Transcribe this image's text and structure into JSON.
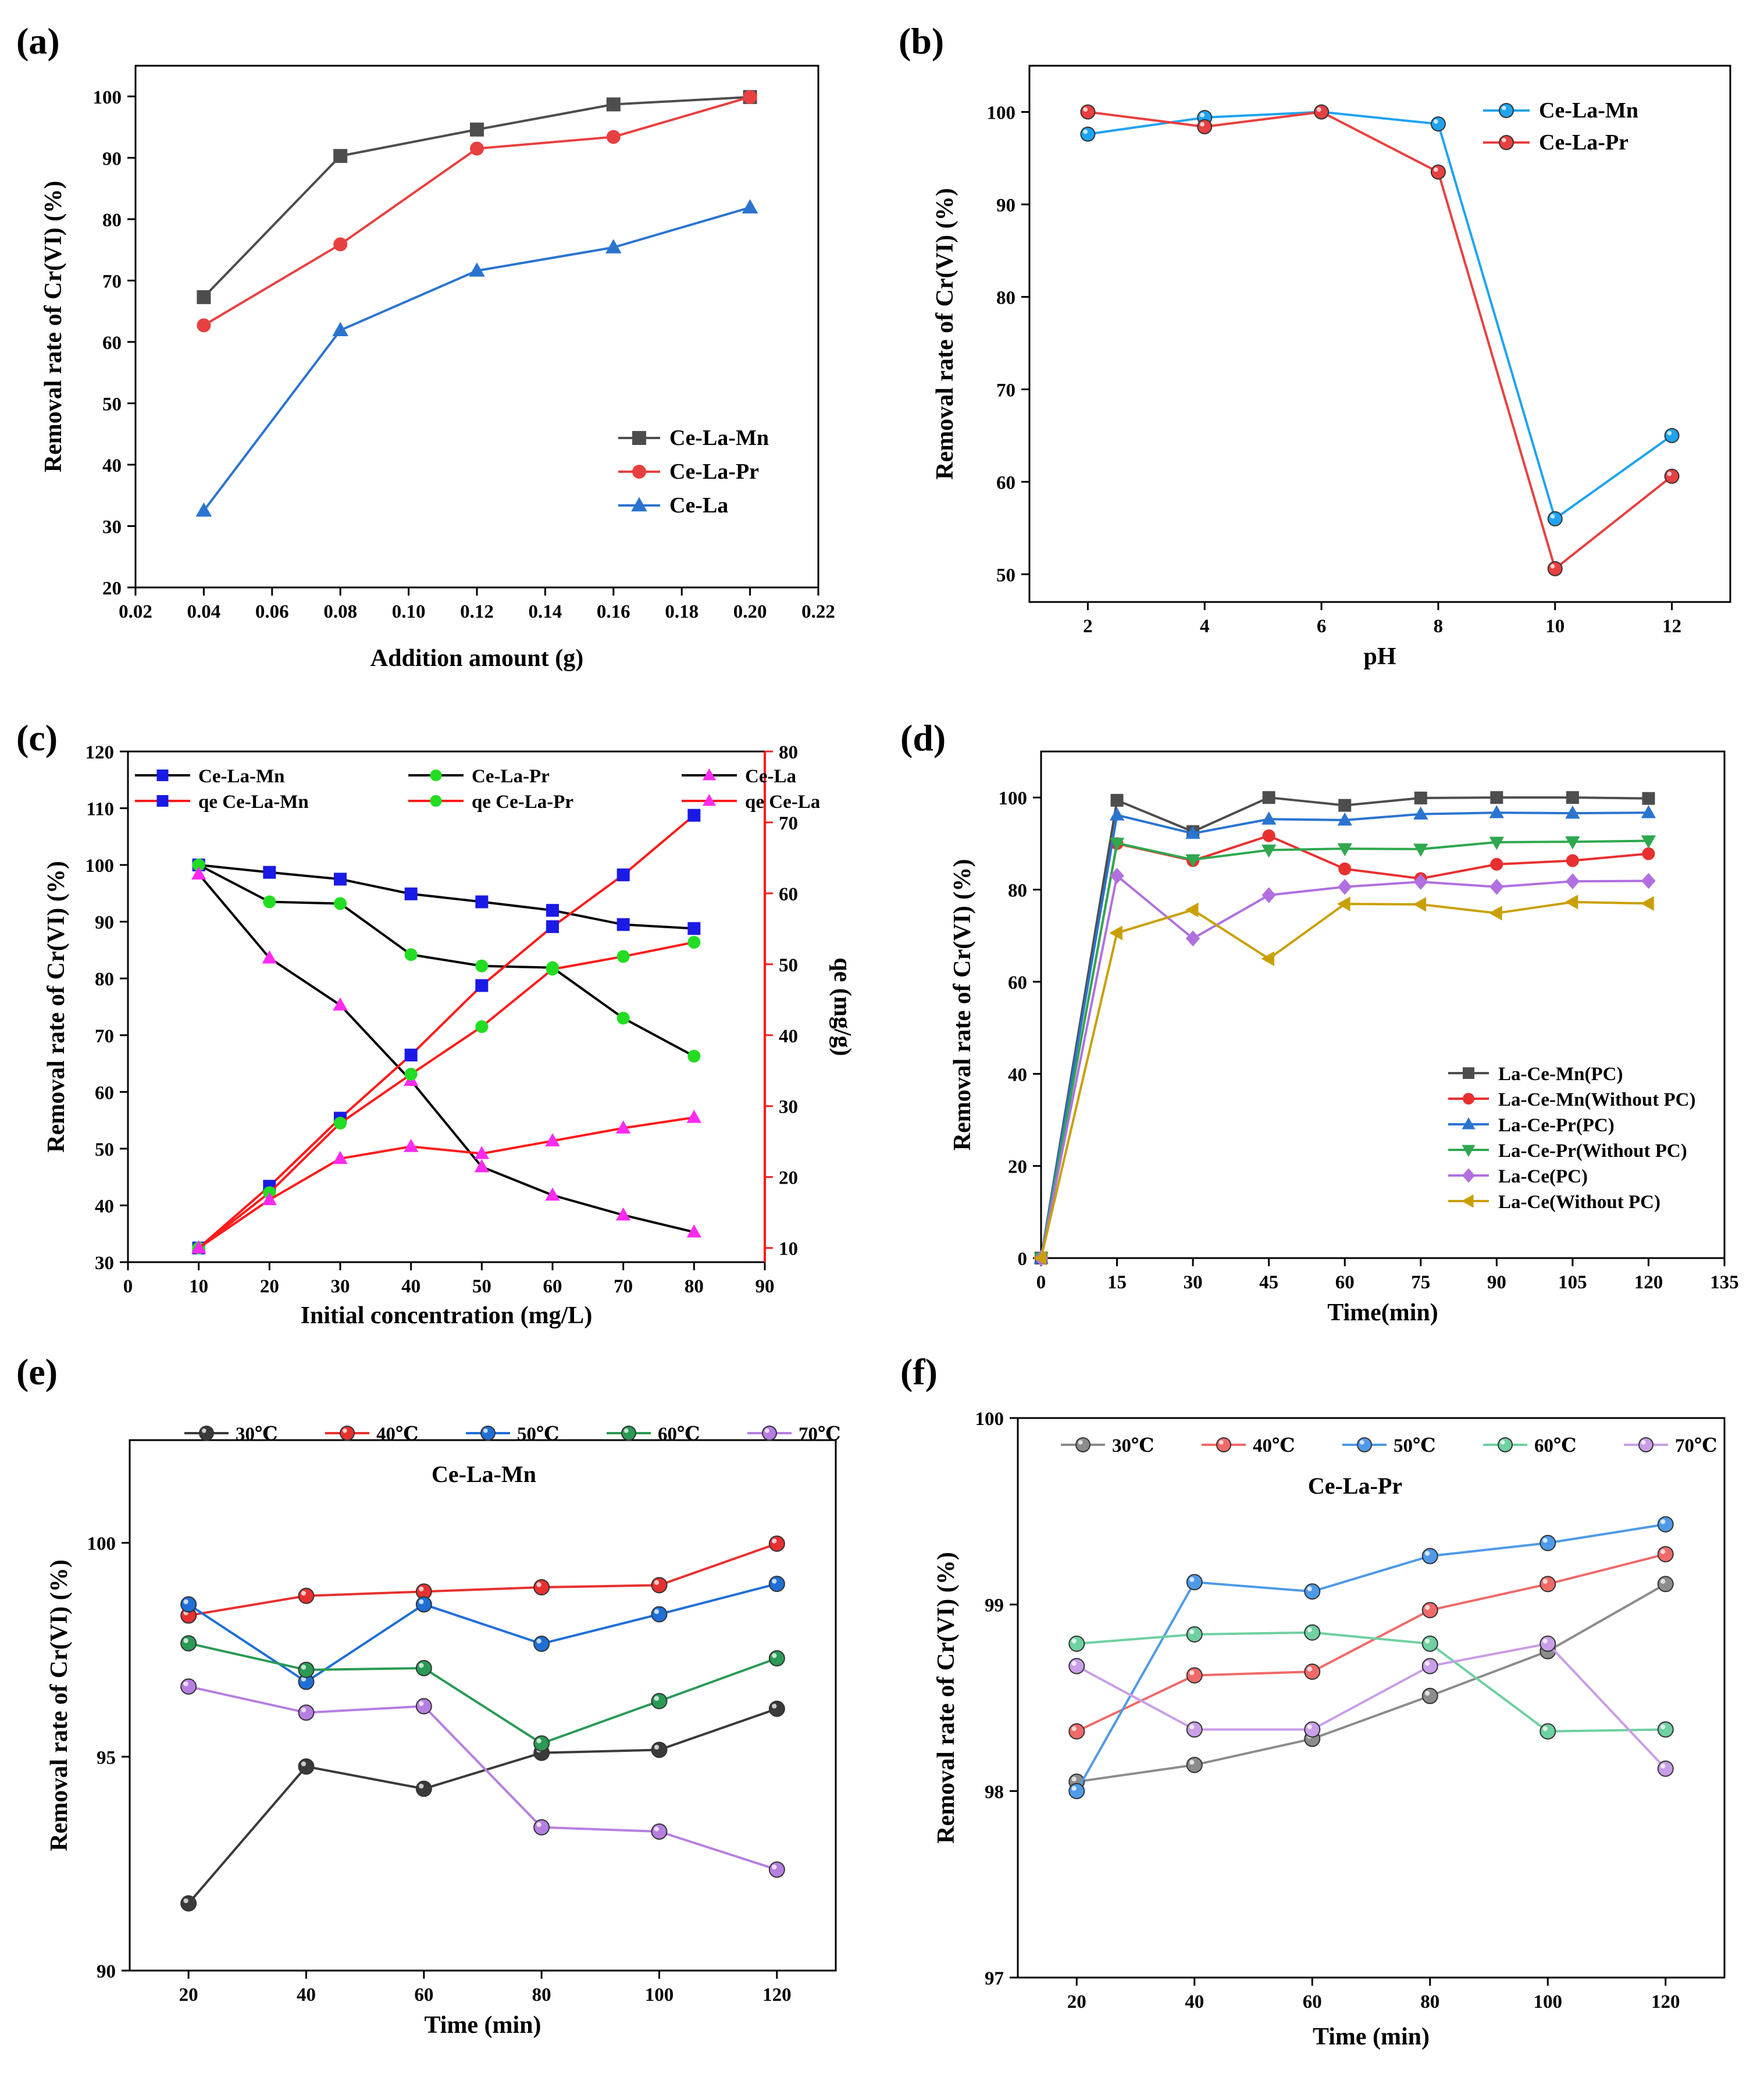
{
  "chart_data": [
    {
      "panel": "(a)",
      "type": "line",
      "xlabel": "Addition amount (g)",
      "ylabel": "Removal rate of Cr(VI) (%)",
      "xlim": [
        0.02,
        0.22
      ],
      "ylim": [
        20,
        105
      ],
      "xticks": [
        "0.02",
        "0.04",
        "0.06",
        "0.08",
        "0.10",
        "0.12",
        "0.14",
        "0.16",
        "0.18",
        "0.20",
        "0.22"
      ],
      "yticks": [
        "20",
        "30",
        "40",
        "50",
        "60",
        "70",
        "80",
        "90",
        "100"
      ],
      "legend_position": "bottom-right",
      "series": [
        {
          "name": "Ce-La-Mn",
          "color": "#4d4d4d",
          "marker": "square",
          "x": [
            0.04,
            0.08,
            0.12,
            0.16,
            0.2
          ],
          "values": [
            67.3,
            90.3,
            94.6,
            98.7,
            99.9
          ]
        },
        {
          "name": "Ce-La-Pr",
          "color": "#e84040",
          "marker": "circle",
          "x": [
            0.04,
            0.08,
            0.12,
            0.16,
            0.2
          ],
          "values": [
            62.7,
            75.9,
            91.5,
            93.4,
            99.9
          ]
        },
        {
          "name": "Ce-La",
          "color": "#2a74d0",
          "marker": "triangle",
          "x": [
            0.04,
            0.08,
            0.12,
            0.16,
            0.2
          ],
          "values": [
            32.5,
            61.9,
            71.6,
            75.4,
            81.9
          ]
        }
      ]
    },
    {
      "panel": "(b)",
      "type": "line",
      "xlabel": "pH",
      "ylabel": "Removal rate of Cr(VI) (%)",
      "xlim": [
        1,
        13
      ],
      "ylim": [
        47,
        105
      ],
      "xticks": [
        "2",
        "4",
        "6",
        "8",
        "10",
        "12"
      ],
      "yticks": [
        "50",
        "60",
        "70",
        "80",
        "90",
        "100"
      ],
      "legend_position": "top-right",
      "series": [
        {
          "name": "Ce-La-Mn",
          "color": "#1fa3f0",
          "marker": "ball",
          "x": [
            2,
            4,
            6,
            8,
            10,
            12
          ],
          "values": [
            97.6,
            99.4,
            100,
            98.7,
            56,
            65
          ]
        },
        {
          "name": "Ce-La-Pr",
          "color": "#e84040",
          "marker": "ball",
          "x": [
            2,
            4,
            6,
            8,
            10,
            12
          ],
          "values": [
            100,
            98.4,
            100,
            93.5,
            50.6,
            60.6
          ]
        }
      ]
    },
    {
      "panel": "(c)",
      "type": "line",
      "xlabel": "Initial concentration (mg/L)",
      "ylabel": "Removal rate of Cr(VI) (%)",
      "y2label": "qe (mg/g)",
      "xlim": [
        0,
        90
      ],
      "ylim": [
        30,
        120
      ],
      "y2lim": [
        8,
        80
      ],
      "xticks": [
        "0",
        "10",
        "20",
        "30",
        "40",
        "50",
        "60",
        "70",
        "80",
        "90"
      ],
      "yticks": [
        "30",
        "40",
        "50",
        "60",
        "70",
        "80",
        "90",
        "100",
        "110",
        "120"
      ],
      "y2ticks": [
        "10",
        "20",
        "30",
        "40",
        "50",
        "60",
        "70",
        "80"
      ],
      "legend_position": "top",
      "series": [
        {
          "name": "Ce-La-Mn",
          "axis": "left",
          "line": "#000000",
          "color": "#1a1ae6",
          "marker": "square",
          "x": [
            10,
            20,
            30,
            40,
            50,
            60,
            70,
            80
          ],
          "values": [
            100,
            98.7,
            97.5,
            94.9,
            93.5,
            92,
            89.5,
            88.8
          ]
        },
        {
          "name": "Ce-La-Pr",
          "axis": "left",
          "line": "#000000",
          "color": "#22dd22",
          "marker": "circle",
          "x": [
            10,
            20,
            30,
            40,
            50,
            60,
            70,
            80
          ],
          "values": [
            100,
            93.5,
            93.2,
            84.2,
            82.2,
            81.9,
            73,
            66.3
          ]
        },
        {
          "name": "Ce-La",
          "axis": "left",
          "line": "#000000",
          "color": "#ff2af0",
          "marker": "triangle",
          "x": [
            10,
            20,
            30,
            40,
            50,
            60,
            70,
            80
          ],
          "values": [
            98.4,
            83.6,
            75.3,
            62,
            46.8,
            41.8,
            38.3,
            35.3
          ]
        },
        {
          "name": "qe Ce-La-Mn",
          "axis": "right",
          "line": "#ff1a1a",
          "color": "#1a1ae6",
          "marker": "square",
          "x": [
            10,
            20,
            30,
            40,
            50,
            60,
            70,
            80
          ],
          "values": [
            10,
            18.7,
            28.3,
            37.2,
            47,
            55.3,
            62.6,
            71
          ]
        },
        {
          "name": "qe Ce-La-Pr",
          "axis": "right",
          "line": "#ff1a1a",
          "color": "#22dd22",
          "marker": "circle",
          "x": [
            10,
            20,
            30,
            40,
            50,
            60,
            70,
            80
          ],
          "values": [
            10,
            17.8,
            27.6,
            34.5,
            41.2,
            49.3,
            51.1,
            53.1
          ]
        },
        {
          "name": "qe Ce-La",
          "axis": "right",
          "line": "#ff1a1a",
          "color": "#ff2af0",
          "marker": "triangle",
          "x": [
            10,
            20,
            30,
            40,
            50,
            60,
            70,
            80
          ],
          "values": [
            10,
            16.8,
            22.6,
            24.3,
            23.3,
            25.1,
            26.9,
            28.4
          ]
        }
      ]
    },
    {
      "panel": "(d)",
      "type": "line",
      "xlabel": "Time(min)",
      "ylabel": "Removal rate of Cr(VI) (%)",
      "xlim": [
        0,
        135
      ],
      "ylim": [
        0,
        110
      ],
      "xticks": [
        "0",
        "15",
        "30",
        "45",
        "60",
        "75",
        "90",
        "105",
        "120",
        "135"
      ],
      "yticks": [
        "0",
        "20",
        "40",
        "60",
        "80",
        "100"
      ],
      "legend_position": "bottom-right",
      "series": [
        {
          "name": "La-Ce-Mn(PC)",
          "color": "#4d4d4d",
          "marker": "square",
          "x": [
            0,
            15,
            30,
            45,
            60,
            75,
            90,
            105,
            120
          ],
          "values": [
            0,
            99.4,
            92.6,
            100,
            98.3,
            99.9,
            100,
            100,
            99.8
          ]
        },
        {
          "name": "La-Ce-Mn(Without PC)",
          "color": "#e83030",
          "marker": "circle",
          "x": [
            0,
            15,
            30,
            45,
            60,
            75,
            90,
            105,
            120
          ],
          "values": [
            0,
            90,
            86.3,
            91.7,
            84.5,
            82.4,
            85.5,
            86.3,
            87.8
          ]
        },
        {
          "name": "La-Ce-Pr(PC)",
          "color": "#2a74d0",
          "marker": "triangle",
          "x": [
            0,
            15,
            30,
            45,
            60,
            75,
            90,
            105,
            120
          ],
          "values": [
            0,
            96.2,
            92.2,
            95.3,
            95.1,
            96.4,
            96.7,
            96.6,
            96.7
          ]
        },
        {
          "name": "La-Ce-Pr(Without PC)",
          "color": "#2fa84f",
          "marker": "triangle-down",
          "x": [
            0,
            15,
            30,
            45,
            60,
            75,
            90,
            105,
            120
          ],
          "values": [
            0,
            90.1,
            86.5,
            88.6,
            88.9,
            88.8,
            90.3,
            90.4,
            90.6
          ]
        },
        {
          "name": "La-Ce(PC)",
          "color": "#b070e0",
          "marker": "diamond",
          "x": [
            0,
            15,
            30,
            45,
            60,
            75,
            90,
            105,
            120
          ],
          "values": [
            0,
            83,
            69.4,
            78.8,
            80.6,
            81.7,
            80.6,
            81.8,
            81.9
          ]
        },
        {
          "name": "La-Ce(Without PC)",
          "color": "#c9a000",
          "marker": "triangle-left",
          "x": [
            0,
            15,
            30,
            45,
            60,
            75,
            90,
            105,
            120
          ],
          "values": [
            0,
            70.6,
            75.6,
            65,
            76.9,
            76.8,
            74.9,
            77.3,
            77
          ]
        }
      ]
    },
    {
      "panel": "(e)",
      "type": "line",
      "annotation": "Ce-La-Mn",
      "xlabel": "Time (min)",
      "ylabel": "Removal rate of Cr(VI) (%)",
      "xlim": [
        10,
        130
      ],
      "ylim": [
        90,
        102.4
      ],
      "xticks": [
        "20",
        "40",
        "60",
        "80",
        "100",
        "120"
      ],
      "yticks": [
        "90",
        "95",
        "100"
      ],
      "legend_position": "top",
      "series": [
        {
          "name": "30℃",
          "color": "#3a3a3a",
          "marker": "ball",
          "x": [
            20,
            40,
            60,
            80,
            100,
            120
          ],
          "values": [
            91.57,
            94.77,
            94.25,
            95.09,
            95.16,
            96.12
          ]
        },
        {
          "name": "40℃",
          "color": "#e83030",
          "marker": "ball",
          "x": [
            20,
            40,
            60,
            80,
            100,
            120
          ],
          "values": [
            98.3,
            98.76,
            98.86,
            98.96,
            99.01,
            99.98
          ]
        },
        {
          "name": "50℃",
          "color": "#1f6fd6",
          "marker": "ball",
          "x": [
            20,
            40,
            60,
            80,
            100,
            120
          ],
          "values": [
            98.56,
            96.75,
            98.56,
            97.64,
            98.33,
            99.04
          ]
        },
        {
          "name": "60℃",
          "color": "#2a9a55",
          "marker": "ball",
          "x": [
            20,
            40,
            60,
            80,
            100,
            120
          ],
          "values": [
            97.65,
            97.03,
            97.07,
            95.31,
            96.3,
            97.3
          ]
        },
        {
          "name": "70℃",
          "color": "#b57fe0",
          "marker": "ball",
          "x": [
            20,
            40,
            60,
            80,
            100,
            120
          ],
          "values": [
            96.64,
            96.03,
            96.18,
            93.35,
            93.25,
            92.36
          ]
        }
      ]
    },
    {
      "panel": "(f)",
      "type": "line",
      "annotation": "Ce-La-Pr",
      "xlabel": "Time (min)",
      "ylabel": "Removal rate of Cr(VI) (%)",
      "xlim": [
        10,
        130
      ],
      "ylim": [
        97,
        100
      ],
      "xticks": [
        "20",
        "40",
        "60",
        "80",
        "100",
        "120"
      ],
      "yticks": [
        "97",
        "98",
        "99",
        "100"
      ],
      "legend_position": "top",
      "series": [
        {
          "name": "30℃",
          "color": "#8c8c8c",
          "marker": "ball",
          "x": [
            20,
            40,
            60,
            80,
            100,
            120
          ],
          "values": [
            98.05,
            98.14,
            98.28,
            98.51,
            98.75,
            99.11
          ]
        },
        {
          "name": "40℃",
          "color": "#f06a6a",
          "marker": "ball",
          "x": [
            20,
            40,
            60,
            80,
            100,
            120
          ],
          "values": [
            98.32,
            98.62,
            98.64,
            98.97,
            99.11,
            99.27
          ]
        },
        {
          "name": "50℃",
          "color": "#4f9ae8",
          "marker": "ball",
          "x": [
            20,
            40,
            60,
            80,
            100,
            120
          ],
          "values": [
            98,
            99.12,
            99.07,
            99.26,
            99.33,
            99.43
          ]
        },
        {
          "name": "60℃",
          "color": "#6fd0a0",
          "marker": "ball",
          "x": [
            20,
            40,
            60,
            80,
            100,
            120
          ],
          "values": [
            98.79,
            98.84,
            98.85,
            98.79,
            98.32,
            98.33
          ]
        },
        {
          "name": "70℃",
          "color": "#c99ee8",
          "marker": "ball",
          "x": [
            20,
            40,
            60,
            80,
            100,
            120
          ],
          "values": [
            98.67,
            98.33,
            98.33,
            98.67,
            98.79,
            98.12
          ]
        }
      ]
    }
  ]
}
